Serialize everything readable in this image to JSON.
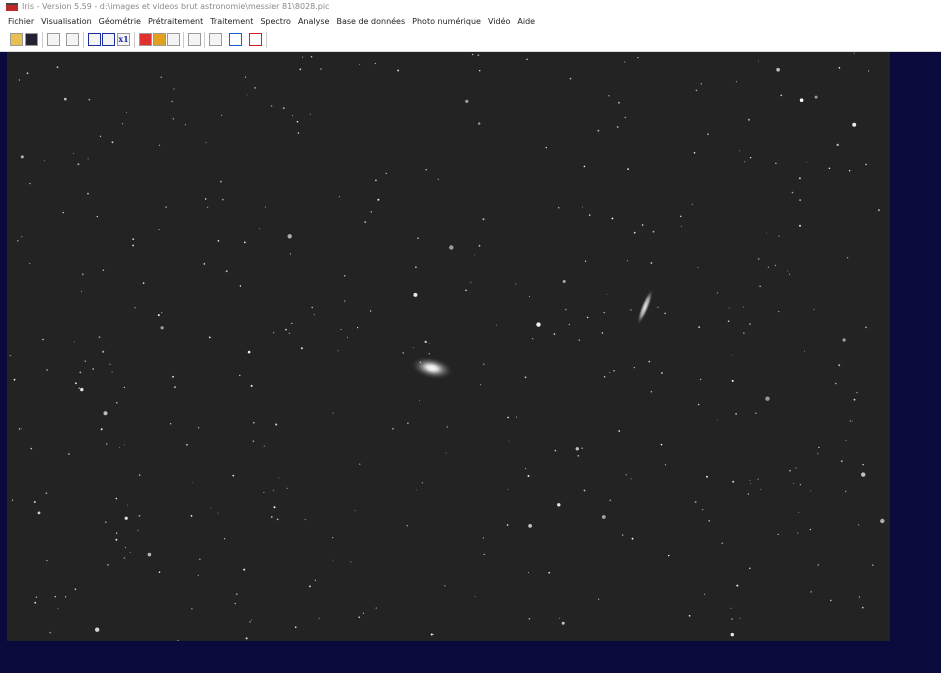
{
  "window": {
    "title": "Iris - Version 5.59 - d:\\images et videos brut astronomie\\messier 81\\8028.pic"
  },
  "menu": [
    "Fichier",
    "Visualisation",
    "Géométrie",
    "Prétraitement",
    "Traitement",
    "Spectro",
    "Analyse",
    "Base de données",
    "Photo numérique",
    "Vidéo",
    "Aide"
  ],
  "toolbar": {
    "zoom_button": "x1"
  }
}
